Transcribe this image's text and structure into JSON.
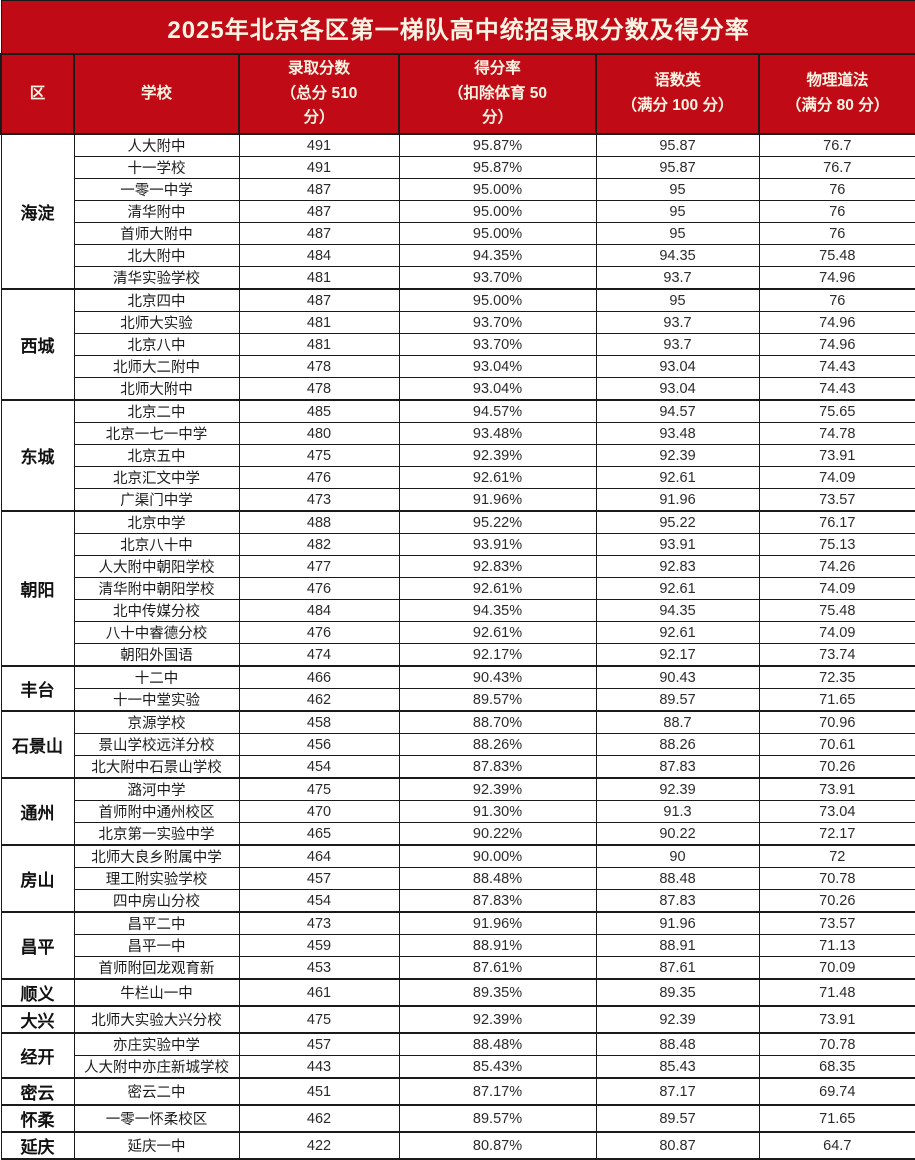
{
  "colors": {
    "banner_red": "#c00a15",
    "banner_text": "#fdf4e3",
    "grid_line": "#1a1a1a",
    "body_text": "#1c1c1c"
  },
  "chart_data": {
    "type": "table",
    "title": "2025年北京各区第一梯队高中统招录取分数及得分率",
    "columns": [
      "区",
      "学校",
      "录取分数（总分 510分）",
      "得分率（扣除体育 50分）",
      "语数英（满分 100 分）",
      "物理道法（满分 80 分）"
    ],
    "header_display": [
      "区",
      "学校",
      "录取分数\n（总分 510\n分）",
      "得分率\n（扣除体育 50\n分）",
      "语数英\n（满分 100 分）",
      "物理道法\n（满分 80 分）"
    ],
    "districts": [
      {
        "name": "海淀",
        "schools": [
          {
            "school": "人大附中",
            "score": "491",
            "rate": "95.87%",
            "chinese_math_english": "95.87",
            "physics_morality": "76.7"
          },
          {
            "school": "十一学校",
            "score": "491",
            "rate": "95.87%",
            "chinese_math_english": "95.87",
            "physics_morality": "76.7"
          },
          {
            "school": "一零一中学",
            "score": "487",
            "rate": "95.00%",
            "chinese_math_english": "95",
            "physics_morality": "76"
          },
          {
            "school": "清华附中",
            "score": "487",
            "rate": "95.00%",
            "chinese_math_english": "95",
            "physics_morality": "76"
          },
          {
            "school": "首师大附中",
            "score": "487",
            "rate": "95.00%",
            "chinese_math_english": "95",
            "physics_morality": "76"
          },
          {
            "school": "北大附中",
            "score": "484",
            "rate": "94.35%",
            "chinese_math_english": "94.35",
            "physics_morality": "75.48"
          },
          {
            "school": "清华实验学校",
            "score": "481",
            "rate": "93.70%",
            "chinese_math_english": "93.7",
            "physics_morality": "74.96"
          }
        ]
      },
      {
        "name": "西城",
        "schools": [
          {
            "school": "北京四中",
            "score": "487",
            "rate": "95.00%",
            "chinese_math_english": "95",
            "physics_morality": "76"
          },
          {
            "school": "北师大实验",
            "score": "481",
            "rate": "93.70%",
            "chinese_math_english": "93.7",
            "physics_morality": "74.96"
          },
          {
            "school": "北京八中",
            "score": "481",
            "rate": "93.70%",
            "chinese_math_english": "93.7",
            "physics_morality": "74.96"
          },
          {
            "school": "北师大二附中",
            "score": "478",
            "rate": "93.04%",
            "chinese_math_english": "93.04",
            "physics_morality": "74.43"
          },
          {
            "school": "北师大附中",
            "score": "478",
            "rate": "93.04%",
            "chinese_math_english": "93.04",
            "physics_morality": "74.43"
          }
        ]
      },
      {
        "name": "东城",
        "schools": [
          {
            "school": "北京二中",
            "score": "485",
            "rate": "94.57%",
            "chinese_math_english": "94.57",
            "physics_morality": "75.65"
          },
          {
            "school": "北京一七一中学",
            "score": "480",
            "rate": "93.48%",
            "chinese_math_english": "93.48",
            "physics_morality": "74.78"
          },
          {
            "school": "北京五中",
            "score": "475",
            "rate": "92.39%",
            "chinese_math_english": "92.39",
            "physics_morality": "73.91"
          },
          {
            "school": "北京汇文中学",
            "score": "476",
            "rate": "92.61%",
            "chinese_math_english": "92.61",
            "physics_morality": "74.09"
          },
          {
            "school": "广渠门中学",
            "score": "473",
            "rate": "91.96%",
            "chinese_math_english": "91.96",
            "physics_morality": "73.57"
          }
        ]
      },
      {
        "name": "朝阳",
        "schools": [
          {
            "school": "北京中学",
            "score": "488",
            "rate": "95.22%",
            "chinese_math_english": "95.22",
            "physics_morality": "76.17"
          },
          {
            "school": "北京八十中",
            "score": "482",
            "rate": "93.91%",
            "chinese_math_english": "93.91",
            "physics_morality": "75.13"
          },
          {
            "school": "人大附中朝阳学校",
            "score": "477",
            "rate": "92.83%",
            "chinese_math_english": "92.83",
            "physics_morality": "74.26"
          },
          {
            "school": "清华附中朝阳学校",
            "score": "476",
            "rate": "92.61%",
            "chinese_math_english": "92.61",
            "physics_morality": "74.09"
          },
          {
            "school": "北中传媒分校",
            "score": "484",
            "rate": "94.35%",
            "chinese_math_english": "94.35",
            "physics_morality": "75.48"
          },
          {
            "school": "八十中睿德分校",
            "score": "476",
            "rate": "92.61%",
            "chinese_math_english": "92.61",
            "physics_morality": "74.09"
          },
          {
            "school": "朝阳外国语",
            "score": "474",
            "rate": "92.17%",
            "chinese_math_english": "92.17",
            "physics_morality": "73.74"
          }
        ]
      },
      {
        "name": "丰台",
        "schools": [
          {
            "school": "十二中",
            "score": "466",
            "rate": "90.43%",
            "chinese_math_english": "90.43",
            "physics_morality": "72.35"
          },
          {
            "school": "十一中堂实验",
            "score": "462",
            "rate": "89.57%",
            "chinese_math_english": "89.57",
            "physics_morality": "71.65"
          }
        ]
      },
      {
        "name": "石景山",
        "schools": [
          {
            "school": "京源学校",
            "score": "458",
            "rate": "88.70%",
            "chinese_math_english": "88.7",
            "physics_morality": "70.96"
          },
          {
            "school": "景山学校远洋分校",
            "score": "456",
            "rate": "88.26%",
            "chinese_math_english": "88.26",
            "physics_morality": "70.61"
          },
          {
            "school": "北大附中石景山学校",
            "score": "454",
            "rate": "87.83%",
            "chinese_math_english": "87.83",
            "physics_morality": "70.26"
          }
        ]
      },
      {
        "name": "通州",
        "schools": [
          {
            "school": "潞河中学",
            "score": "475",
            "rate": "92.39%",
            "chinese_math_english": "92.39",
            "physics_morality": "73.91"
          },
          {
            "school": "首师附中通州校区",
            "score": "470",
            "rate": "91.30%",
            "chinese_math_english": "91.3",
            "physics_morality": "73.04"
          },
          {
            "school": "北京第一实验中学",
            "score": "465",
            "rate": "90.22%",
            "chinese_math_english": "90.22",
            "physics_morality": "72.17"
          }
        ]
      },
      {
        "name": "房山",
        "schools": [
          {
            "school": "北师大良乡附属中学",
            "score": "464",
            "rate": "90.00%",
            "chinese_math_english": "90",
            "physics_morality": "72"
          },
          {
            "school": "理工附实验学校",
            "score": "457",
            "rate": "88.48%",
            "chinese_math_english": "88.48",
            "physics_morality": "70.78"
          },
          {
            "school": "四中房山分校",
            "score": "454",
            "rate": "87.83%",
            "chinese_math_english": "87.83",
            "physics_morality": "70.26"
          }
        ]
      },
      {
        "name": "昌平",
        "schools": [
          {
            "school": "昌平二中",
            "score": "473",
            "rate": "91.96%",
            "chinese_math_english": "91.96",
            "physics_morality": "73.57"
          },
          {
            "school": "昌平一中",
            "score": "459",
            "rate": "88.91%",
            "chinese_math_english": "88.91",
            "physics_morality": "71.13"
          },
          {
            "school": "首师附回龙观育新",
            "score": "453",
            "rate": "87.61%",
            "chinese_math_english": "87.61",
            "physics_morality": "70.09"
          }
        ]
      },
      {
        "name": "顺义",
        "schools": [
          {
            "school": "牛栏山一中",
            "score": "461",
            "rate": "89.35%",
            "chinese_math_english": "89.35",
            "physics_morality": "71.48"
          }
        ]
      },
      {
        "name": "大兴",
        "schools": [
          {
            "school": "北师大实验大兴分校",
            "score": "475",
            "rate": "92.39%",
            "chinese_math_english": "92.39",
            "physics_morality": "73.91"
          }
        ]
      },
      {
        "name": "经开",
        "schools": [
          {
            "school": "亦庄实验中学",
            "score": "457",
            "rate": "88.48%",
            "chinese_math_english": "88.48",
            "physics_morality": "70.78"
          },
          {
            "school": "人大附中亦庄新城学校",
            "score": "443",
            "rate": "85.43%",
            "chinese_math_english": "85.43",
            "physics_morality": "68.35"
          }
        ]
      },
      {
        "name": "密云",
        "schools": [
          {
            "school": "密云二中",
            "score": "451",
            "rate": "87.17%",
            "chinese_math_english": "87.17",
            "physics_morality": "69.74"
          }
        ]
      },
      {
        "name": "怀柔",
        "schools": [
          {
            "school": "一零一怀柔校区",
            "score": "462",
            "rate": "89.57%",
            "chinese_math_english": "89.57",
            "physics_morality": "71.65"
          }
        ]
      },
      {
        "name": "延庆",
        "schools": [
          {
            "school": "延庆一中",
            "score": "422",
            "rate": "80.87%",
            "chinese_math_english": "80.87",
            "physics_morality": "64.7"
          }
        ]
      }
    ]
  }
}
